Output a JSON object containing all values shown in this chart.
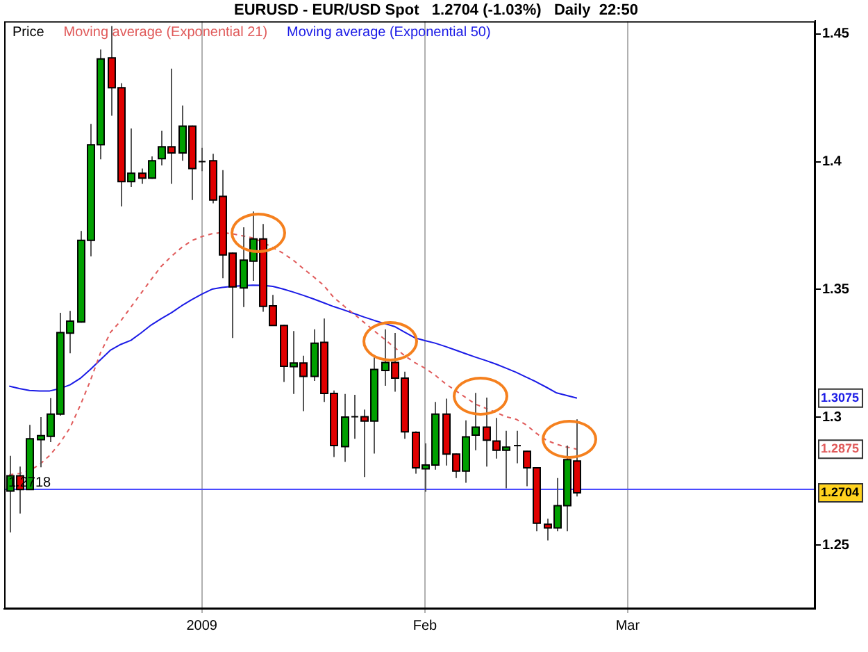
{
  "chart_data": {
    "type": "candlestick",
    "title": "EURUSD - EUR/USD Spot   1.2704 (-1.03%)   Daily  22:50",
    "categories": [
      null,
      null,
      null,
      null,
      null,
      null,
      null,
      null,
      null,
      null,
      null,
      null,
      null,
      null,
      null,
      null,
      null,
      null,
      null,
      "2009",
      null,
      null,
      null,
      null,
      null,
      null,
      null,
      null,
      null,
      null,
      null,
      null,
      null,
      null,
      null,
      null,
      null,
      null,
      null,
      null,
      null,
      "Feb",
      null,
      null,
      null,
      null,
      null,
      null,
      null,
      null,
      null,
      null,
      null,
      null,
      null,
      null,
      null,
      null,
      null,
      null,
      null,
      "Mar",
      null,
      null,
      null,
      null,
      null,
      null,
      null,
      null,
      null,
      null,
      null,
      null,
      null,
      null,
      null,
      null,
      null,
      null
    ],
    "ohlc": [
      [
        1.2711,
        1.2849,
        1.2549,
        1.2771
      ],
      [
        1.2771,
        1.2807,
        1.2623,
        1.2717
      ],
      [
        1.2717,
        1.297,
        1.2715,
        1.2916
      ],
      [
        1.2912,
        1.3001,
        1.2804,
        1.2928
      ],
      [
        1.2925,
        1.3075,
        1.2903,
        1.3012
      ],
      [
        1.3012,
        1.3409,
        1.3006,
        1.3331
      ],
      [
        1.3329,
        1.3416,
        1.325,
        1.3376
      ],
      [
        1.3373,
        1.3729,
        1.337,
        1.3692
      ],
      [
        1.3692,
        1.4148,
        1.363,
        1.4066
      ],
      [
        1.4066,
        1.4439,
        1.4009,
        1.4402
      ],
      [
        1.4406,
        1.4531,
        1.418,
        1.4289
      ],
      [
        1.4289,
        1.4307,
        1.3825,
        1.3922
      ],
      [
        1.3922,
        1.413,
        1.3901,
        1.3955
      ],
      [
        1.3955,
        1.3973,
        1.3913,
        1.3936
      ],
      [
        1.3936,
        1.4021,
        1.3933,
        1.4004
      ],
      [
        1.4012,
        1.4121,
        1.3985,
        1.4058
      ],
      [
        1.4058,
        1.4364,
        1.3913,
        1.4034
      ],
      [
        1.4034,
        1.422,
        1.4004,
        1.4139
      ],
      [
        1.4139,
        1.4141,
        1.385,
        1.3973
      ],
      [
        1.4,
        1.4054,
        1.3963,
        1.4
      ],
      [
        1.4004,
        1.4031,
        1.3837,
        1.385
      ],
      [
        1.3864,
        1.3967,
        1.3544,
        1.3635
      ],
      [
        1.3642,
        1.3645,
        1.331,
        1.351
      ],
      [
        1.3506,
        1.3743,
        1.3431,
        1.3615
      ],
      [
        1.3611,
        1.3805,
        1.3534,
        1.3698
      ],
      [
        1.3698,
        1.3756,
        1.3413,
        1.3434
      ],
      [
        1.3436,
        1.3479,
        1.3357,
        1.3359
      ],
      [
        1.3359,
        1.3362,
        1.3138,
        1.3199
      ],
      [
        1.3198,
        1.3337,
        1.3091,
        1.3212
      ],
      [
        1.3212,
        1.3241,
        1.3024,
        1.316
      ],
      [
        1.316,
        1.3344,
        1.3142,
        1.329
      ],
      [
        1.3293,
        1.3386,
        1.306,
        1.3093
      ],
      [
        1.3093,
        1.3105,
        1.2844,
        1.2889
      ],
      [
        1.2885,
        1.3091,
        1.2825,
        1.3001
      ],
      [
        1.3002,
        1.3088,
        1.2916,
        1.3002
      ],
      [
        1.3002,
        1.303,
        1.2766,
        1.2985
      ],
      [
        1.2985,
        1.3236,
        1.2858,
        1.3187
      ],
      [
        1.3183,
        1.3344,
        1.3123,
        1.3214
      ],
      [
        1.3214,
        1.333,
        1.31,
        1.3153
      ],
      [
        1.3153,
        1.3178,
        1.2916,
        1.2943
      ],
      [
        1.2941,
        1.2945,
        1.2779,
        1.2802
      ],
      [
        1.2798,
        1.2898,
        1.2708,
        1.2813
      ],
      [
        1.2813,
        1.306,
        1.2795,
        1.3012
      ],
      [
        1.3012,
        1.3073,
        1.2811,
        1.2856
      ],
      [
        1.2856,
        1.2858,
        1.2762,
        1.2789
      ],
      [
        1.2789,
        1.2988,
        1.2744,
        1.2923
      ],
      [
        1.293,
        1.3095,
        1.2871,
        1.2961
      ],
      [
        1.2961,
        1.3077,
        1.2807,
        1.291
      ],
      [
        1.2907,
        1.2997,
        1.2838,
        1.2871
      ],
      [
        1.2871,
        1.2947,
        1.2722,
        1.2883
      ],
      [
        1.2889,
        1.2947,
        1.282,
        1.2889
      ],
      [
        1.2867,
        1.2869,
        1.273,
        1.2802
      ],
      [
        1.2802,
        1.2804,
        1.2554,
        1.2585
      ],
      [
        1.2581,
        1.2603,
        1.2518,
        1.2567
      ],
      [
        1.2567,
        1.2762,
        1.2554,
        1.2654
      ],
      [
        1.2654,
        1.2889,
        1.2554,
        1.2834
      ],
      [
        1.2829,
        1.2992,
        1.269,
        1.2704
      ],
      null,
      null,
      null,
      null,
      null,
      null,
      null,
      null,
      null,
      null,
      null,
      null,
      null,
      null,
      null,
      null,
      null,
      null,
      null,
      null,
      null,
      null,
      null
    ],
    "colors": [
      "#00a000",
      "#e00000",
      "#00a000",
      "#00a000",
      "#00a000",
      "#00a000",
      "#00a000",
      "#00a000",
      "#00a000",
      "#00a000",
      "#e00000",
      "#e00000",
      "#00a000",
      "#e00000",
      "#00a000",
      "#00a000",
      "#e00000",
      "#00a000",
      "#e00000",
      "#000000",
      "#e00000",
      "#e00000",
      "#e00000",
      "#00a000",
      "#00a000",
      "#e00000",
      "#e00000",
      "#e00000",
      "#00a000",
      "#e00000",
      "#00a000",
      "#e00000",
      "#e00000",
      "#00a000",
      "#000000",
      "#e00000",
      "#00a000",
      "#00a000",
      "#e00000",
      "#e00000",
      "#e00000",
      "#00a000",
      "#00a000",
      "#e00000",
      "#e00000",
      "#00a000",
      "#00a000",
      "#e00000",
      "#e00000",
      "#00a000",
      "#000000",
      "#e00000",
      "#e00000",
      "#e00000",
      "#00a000",
      "#00a000",
      "#e00000",
      null,
      null,
      null,
      null,
      null,
      null,
      null,
      null,
      null,
      null,
      null,
      null,
      null,
      null,
      null,
      null,
      null,
      null,
      null,
      null,
      null,
      null,
      null
    ],
    "series": [
      {
        "name": "Moving average (Exponential 21)",
        "type": "line",
        "color": "#e05a5a",
        "line_style": "dashed",
        "values": [
          1.2775,
          1.278,
          1.2791,
          1.2815,
          1.2851,
          1.2899,
          1.2959,
          1.3046,
          1.3143,
          1.3252,
          1.3333,
          1.3377,
          1.3431,
          1.3485,
          1.3539,
          1.3591,
          1.363,
          1.3664,
          1.3691,
          1.3707,
          1.3718,
          1.3723,
          1.3718,
          1.371,
          1.3702,
          1.3685,
          1.3664,
          1.3642,
          1.3615,
          1.3582,
          1.355,
          1.3517,
          1.3469,
          1.3436,
          1.3404,
          1.3371,
          1.3338,
          1.3306,
          1.3273,
          1.3241,
          1.3214,
          1.3192,
          1.3165,
          1.3132,
          1.3105,
          1.3078,
          1.3051,
          1.3035,
          1.3019,
          1.3002,
          1.2992,
          1.297,
          1.2937,
          1.291,
          1.2894,
          1.2883,
          1.2875,
          null,
          null,
          null,
          null,
          null,
          null,
          null,
          null,
          null,
          null,
          null,
          null,
          null,
          null,
          null,
          null,
          null,
          null,
          null,
          null,
          null,
          null,
          null
        ]
      },
      {
        "name": "Moving average (Exponential 50)",
        "type": "line",
        "color": "#1a1ae6",
        "line_style": "solid",
        "values": [
          1.3122,
          1.3112,
          1.3105,
          1.3103,
          1.3103,
          1.3112,
          1.3127,
          1.3152,
          1.3187,
          1.3225,
          1.3263,
          1.3285,
          1.3301,
          1.333,
          1.3361,
          1.3386,
          1.3409,
          1.3436,
          1.346,
          1.3482,
          1.3501,
          1.3508,
          1.3512,
          1.3515,
          1.3517,
          1.3516,
          1.3512,
          1.3502,
          1.349,
          1.3477,
          1.3463,
          1.3448,
          1.3433,
          1.342,
          1.3406,
          1.3392,
          1.3379,
          1.3367,
          1.3355,
          1.3333,
          1.3311,
          1.33,
          1.329,
          1.3277,
          1.3263,
          1.3249,
          1.3235,
          1.3222,
          1.3208,
          1.3192,
          1.3176,
          1.3157,
          1.3138,
          1.3117,
          1.3095,
          1.3085,
          1.3075,
          null,
          null,
          null,
          null,
          null,
          null,
          null,
          null,
          null,
          null,
          null,
          null,
          null,
          null,
          null,
          null,
          null,
          null,
          null,
          null,
          null,
          null,
          null
        ]
      }
    ],
    "ylim": [
      1.225,
      1.455
    ],
    "yticks": [
      1.25,
      1.3,
      1.35,
      1.4,
      1.45
    ],
    "ref_lines": [
      {
        "axis": "y",
        "value": 1.2718,
        "label": "1.2718",
        "color": "#4a4aff"
      }
    ],
    "annotations": [
      "Price",
      "1.3075",
      "1.2875",
      "1.2704"
    ],
    "grid": "x",
    "legend": "top left",
    "marker": "none"
  }
}
